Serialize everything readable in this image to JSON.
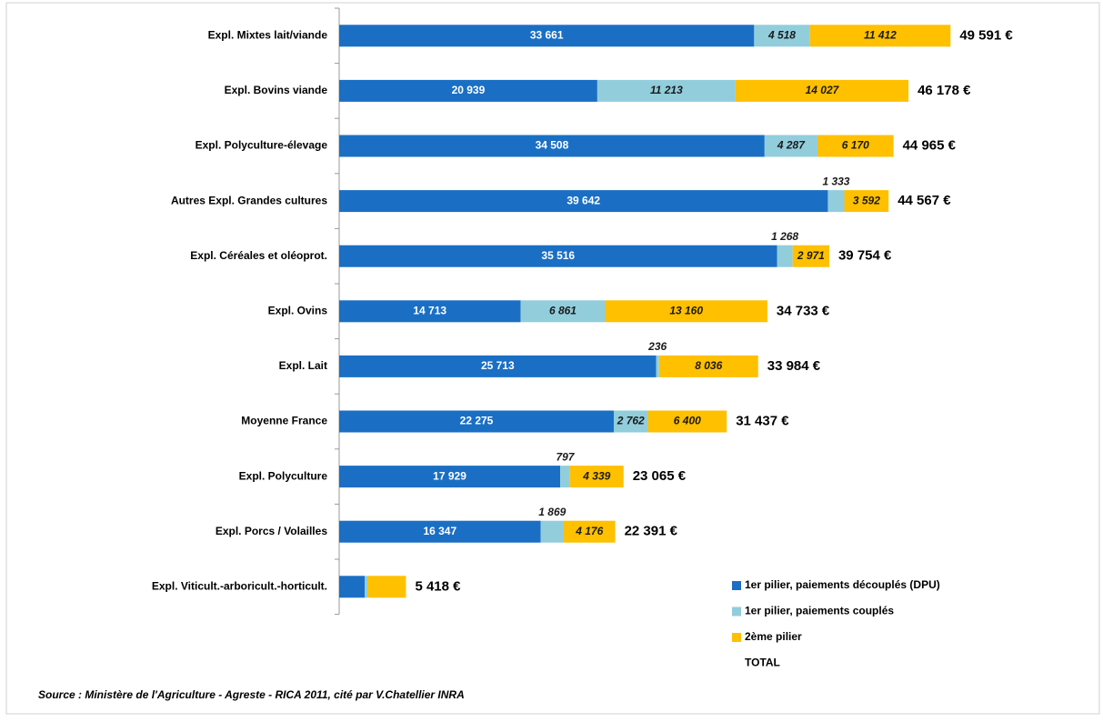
{
  "chart_data": {
    "type": "stacked-bar-horizontal",
    "categories": [
      "Expl. Mixtes lait/viande",
      "Expl. Bovins viande",
      "Expl. Polyculture-élevage",
      "Autres Expl. Grandes cultures",
      "Expl. Céréales et oléoprot.",
      "Expl. Ovins",
      "Expl.  Lait",
      "Moyenne France",
      "Expl. Polyculture",
      "Expl. Porcs / Volailles",
      "Expl. Viticult.-arboricult.-horticult."
    ],
    "series": [
      {
        "name": "1er pilier, paiements découplés (DPU)",
        "color": "#1a6fc4",
        "values": [
          33661,
          20939,
          34508,
          39642,
          35516,
          14713,
          25713,
          22275,
          17929,
          16347,
          2070
        ],
        "value_labels": [
          "33 661",
          "20 939",
          "34 508",
          "39 642",
          "35 516",
          "14 713",
          "25 713",
          "22 275",
          "17 929",
          "16 347",
          null
        ]
      },
      {
        "name": "1er pilier, paiements couplés",
        "color": "#92cddc",
        "values": [
          4518,
          11213,
          4287,
          1333,
          1268,
          6861,
          236,
          2762,
          797,
          1869,
          220
        ],
        "value_labels": [
          "4 518",
          "11 213",
          "4 287",
          "1 333",
          "1 268",
          "6 861",
          "236",
          "2 762",
          "797",
          "1 869",
          null
        ]
      },
      {
        "name": "2ème pilier",
        "color": "#ffc000",
        "values": [
          11412,
          14027,
          6170,
          3592,
          2971,
          13160,
          8036,
          6400,
          4339,
          4176,
          3128
        ],
        "value_labels": [
          "11 412",
          "14 027",
          "6 170",
          "3 592",
          "2 971",
          "13 160",
          "8 036",
          "6 400",
          "4 339",
          "4 176",
          null
        ]
      }
    ],
    "totals": {
      "name": "TOTAL",
      "values": [
        49591,
        46178,
        44965,
        44567,
        39754,
        34733,
        33984,
        31437,
        23065,
        22391,
        5418
      ],
      "value_labels": [
        "49 591 €",
        "46 178 €",
        "44 965 €",
        "44 567 €",
        "39 754 €",
        "34 733 €",
        "33 984 €",
        "31 437 €",
        "23 065 €",
        "22 391 €",
        "5 418 €"
      ]
    },
    "xlim": [
      0,
      61000
    ],
    "source": "Source : Ministère de l'Agriculture - Agreste - RICA 2011, cité par V.Chatellier INRA"
  }
}
